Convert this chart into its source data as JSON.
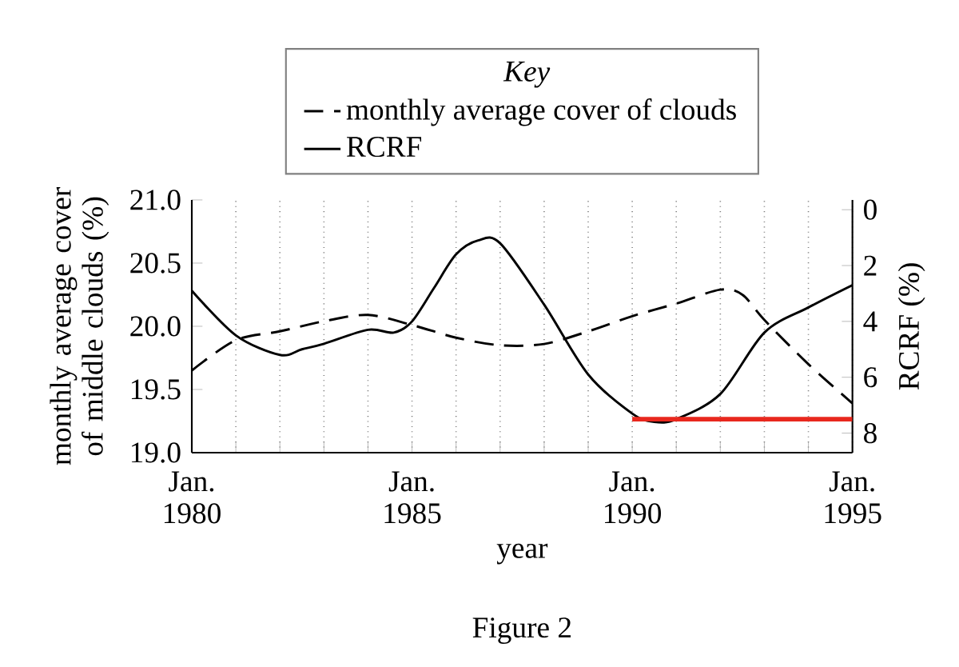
{
  "chart_data": {
    "type": "line",
    "annotations": [
      "Figure 2"
    ],
    "xlabel": "year",
    "ylabel": "monthly average cover of middle clouds (%)",
    "y2label": "RCRF (%)",
    "legend_title": "*Key*",
    "legend": "top",
    "grid": "x",
    "marker": "none",
    "xlim": [
      "1980-01",
      "1995-01"
    ],
    "xticks": [
      {
        "value": "1980-01",
        "label": "Jan. 1980"
      },
      {
        "value": "1981-01",
        "label": null
      },
      {
        "value": "1982-01",
        "label": null
      },
      {
        "value": "1983-01",
        "label": null
      },
      {
        "value": "1984-01",
        "label": null
      },
      {
        "value": "1985-01",
        "label": "Jan. 1985"
      },
      {
        "value": "1986-01",
        "label": null
      },
      {
        "value": "1987-01",
        "label": null
      },
      {
        "value": "1988-01",
        "label": null
      },
      {
        "value": "1989-01",
        "label": null
      },
      {
        "value": "1990-01",
        "label": "Jan. 1990"
      },
      {
        "value": "1991-01",
        "label": null
      },
      {
        "value": "1992-01",
        "label": null
      },
      {
        "value": "1993-01",
        "label": null
      },
      {
        "value": "1994-01",
        "label": null
      },
      {
        "value": "1995-01",
        "label": "Jan. 1995"
      }
    ],
    "ylim": [
      19.0,
      21.0
    ],
    "yticks": [
      {
        "value": 19.0,
        "label": "19.0"
      },
      {
        "value": 19.5,
        "label": "19.5"
      },
      {
        "value": 20.0,
        "label": "20.0"
      },
      {
        "value": 20.5,
        "label": "20.5"
      },
      {
        "value": 21.0,
        "label": "21.0"
      }
    ],
    "y2lim": [
      8.7,
      -0.35
    ],
    "y2ticks": [
      0,
      2,
      4,
      6,
      8
    ],
    "series": [
      {
        "name": "monthly average cover of clouds",
        "color": "#000000",
        "line_style": "dashed",
        "x": [
          "1980-01",
          "1981-01",
          "1982-01",
          "1983-01",
          "1984-01",
          "1985-01",
          "1986-01",
          "1987-01",
          "1988-01",
          "1989-01",
          "1990-01",
          "1991-01",
          "1992-01",
          "1992-07",
          "1993-01",
          "1994-01",
          "1995-01"
        ],
        "values": [
          19.65,
          19.89,
          19.96,
          20.04,
          20.09,
          20.01,
          19.91,
          19.85,
          19.86,
          19.96,
          20.08,
          20.18,
          20.29,
          20.25,
          20.05,
          19.7,
          19.39
        ]
      },
      {
        "name": "RCRF",
        "color": "#000000",
        "line_style": "solid",
        "axis": "y2",
        "x": [
          "1980-01",
          "1981-01",
          "1982-01",
          "1982-07",
          "1983-01",
          "1984-01",
          "1984-08",
          "1985-01",
          "1985-07",
          "1986-01",
          "1986-07",
          "1987-01",
          "1988-01",
          "1989-01",
          "1990-01",
          "1990-07",
          "1991-01",
          "1992-01",
          "1993-01",
          "1994-01",
          "1995-01"
        ],
        "values": [
          2.9,
          4.5,
          5.2,
          5.0,
          4.8,
          4.3,
          4.4,
          4.0,
          2.8,
          1.6,
          1.1,
          1.2,
          3.4,
          5.9,
          7.3,
          7.6,
          7.5,
          6.6,
          4.4,
          3.5,
          2.7
        ]
      },
      {
        "color": "#e8281e",
        "line_style": "solid",
        "axis": "y2",
        "x": [
          "1990-01",
          "1995-01"
        ],
        "values": [
          7.5,
          7.5
        ]
      }
    ]
  }
}
